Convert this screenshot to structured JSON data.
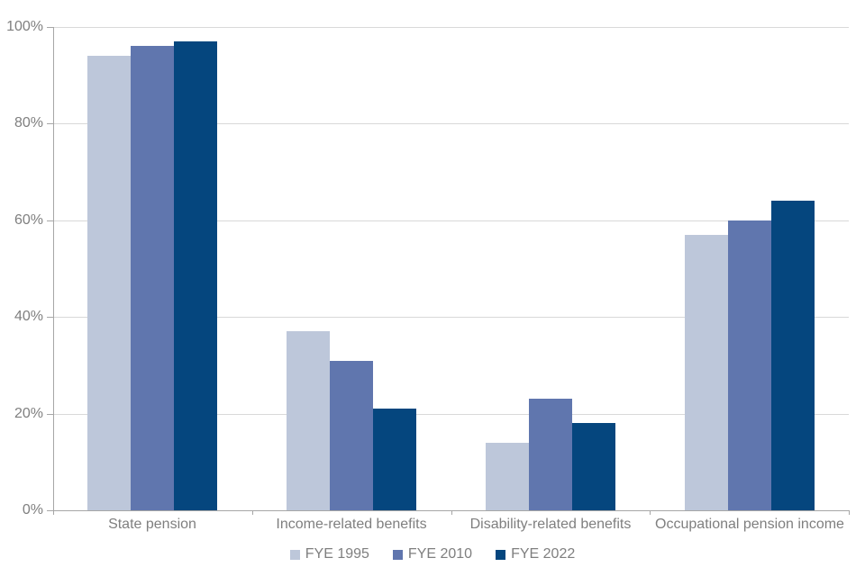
{
  "chart_data": {
    "type": "bar",
    "title": "",
    "xlabel": "",
    "ylabel": "",
    "categories": [
      "State pension",
      "Income-related benefits",
      "Disability-related benefits",
      "Occupational pension income"
    ],
    "series": [
      {
        "name": "FYE 1995",
        "color": "#bdc7da",
        "values": [
          94,
          37,
          14,
          57
        ]
      },
      {
        "name": "FYE 2010",
        "color": "#6076ae",
        "values": [
          96,
          31,
          23,
          60
        ]
      },
      {
        "name": "FYE 2022",
        "color": "#05467e",
        "values": [
          97,
          21,
          18,
          64
        ]
      }
    ],
    "ylim": [
      0,
      100
    ],
    "yticks": [
      0,
      20,
      40,
      60,
      80,
      100
    ],
    "ytick_labels": [
      "0%",
      "20%",
      "40%",
      "60%",
      "80%",
      "100%"
    ],
    "ytick_format": "percent",
    "grid": "horizontal",
    "legend_position": "bottom"
  },
  "style": {
    "gridline_color": "#d9d9d9",
    "axis_color": "#a6a6a6",
    "text_color": "#7f7f7f",
    "background": "#ffffff"
  }
}
